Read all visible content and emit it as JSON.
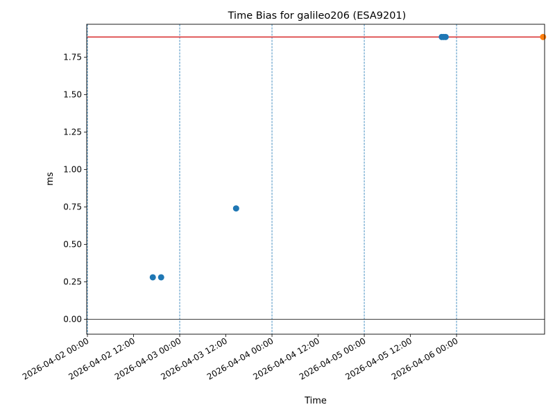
{
  "chart_data": {
    "type": "scatter",
    "title": "Time Bias for galileo206 (ESA9201)",
    "xlabel": "Time",
    "ylabel": "ms",
    "x_tick_labels": [
      "2026-04-02 00:00",
      "2026-04-02 12:00",
      "2026-04-03 00:00",
      "2026-04-03 12:00",
      "2026-04-04 00:00",
      "2026-04-04 12:00",
      "2026-04-05 00:00",
      "2026-04-05 12:00",
      "2026-04-06 00:00"
    ],
    "x_tick_dates": [
      "2026-04-02T00:00",
      "2026-04-02T12:00",
      "2026-04-03T00:00",
      "2026-04-03T12:00",
      "2026-04-04T00:00",
      "2026-04-04T12:00",
      "2026-04-05T00:00",
      "2026-04-05T12:00",
      "2026-04-06T00:00"
    ],
    "xlim": [
      "2026-04-01T23:49",
      "2026-04-06T22:54"
    ],
    "y_tick_labels": [
      "0.00",
      "0.25",
      "0.50",
      "0.75",
      "1.00",
      "1.25",
      "1.50",
      "1.75"
    ],
    "y_ticks": [
      0,
      0.25,
      0.5,
      0.75,
      1.0,
      1.25,
      1.5,
      1.75
    ],
    "ylim": [
      -0.1,
      1.97
    ],
    "day_lines": [
      "2026-04-02T00:00",
      "2026-04-03T00:00",
      "2026-04-04T00:00",
      "2026-04-05T00:00",
      "2026-04-06T00:00"
    ],
    "reference_line_y": 1.885,
    "reference_line_x": [
      "2026-04-02T00:00",
      "2026-04-06T22:30"
    ],
    "zero_line_y": 0,
    "series": [
      {
        "color": "#1f77b4",
        "points": [
          {
            "x": "2026-04-02T17:00",
            "y": 0.28
          },
          {
            "x": "2026-04-02T19:10",
            "y": 0.28
          },
          {
            "x": "2026-04-03T14:40",
            "y": 0.74
          },
          {
            "x": "2026-04-05T20:10",
            "y": 1.885
          },
          {
            "x": "2026-04-05T20:40",
            "y": 1.885
          },
          {
            "x": "2026-04-05T21:10",
            "y": 1.885
          }
        ]
      },
      {
        "color": "#ff7f0e",
        "points": [
          {
            "x": "2026-04-06T22:30",
            "y": 1.885
          }
        ]
      }
    ],
    "reference_color": "#d62728",
    "day_line_color": "#1f77b4"
  }
}
